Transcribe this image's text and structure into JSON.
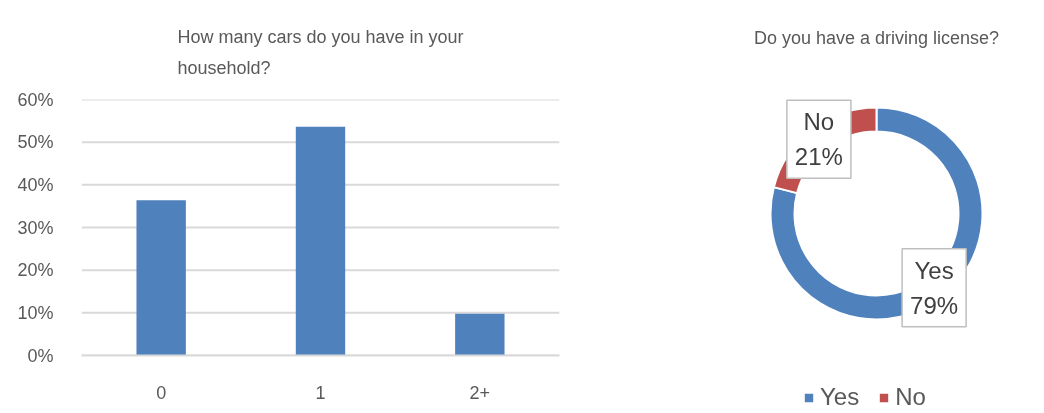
{
  "chart_data": [
    {
      "type": "bar",
      "title": "How many cars do you have in your household?",
      "categories": [
        "0",
        "1",
        "2+"
      ],
      "values": [
        36.4,
        53.6,
        9.8
      ],
      "color": "#4f81bd",
      "ylim": [
        0,
        60
      ],
      "yticks": [
        {
          "value": 0,
          "label": "0%"
        },
        {
          "value": 10,
          "label": "10%"
        },
        {
          "value": 20,
          "label": "20%"
        },
        {
          "value": 30,
          "label": "30%"
        },
        {
          "value": 40,
          "label": "40%"
        },
        {
          "value": 50,
          "label": "50%"
        },
        {
          "value": 60,
          "label": "60%"
        }
      ],
      "grid": "y"
    },
    {
      "type": "donut",
      "title": "Do you have a driving license?",
      "categories": [
        "Yes",
        "No"
      ],
      "values": [
        79,
        21
      ],
      "colors": [
        "#4f81bd",
        "#c0504d"
      ],
      "value_labels": [
        "Yes\n79%",
        "No\n21%"
      ],
      "legend": "bottom"
    }
  ]
}
